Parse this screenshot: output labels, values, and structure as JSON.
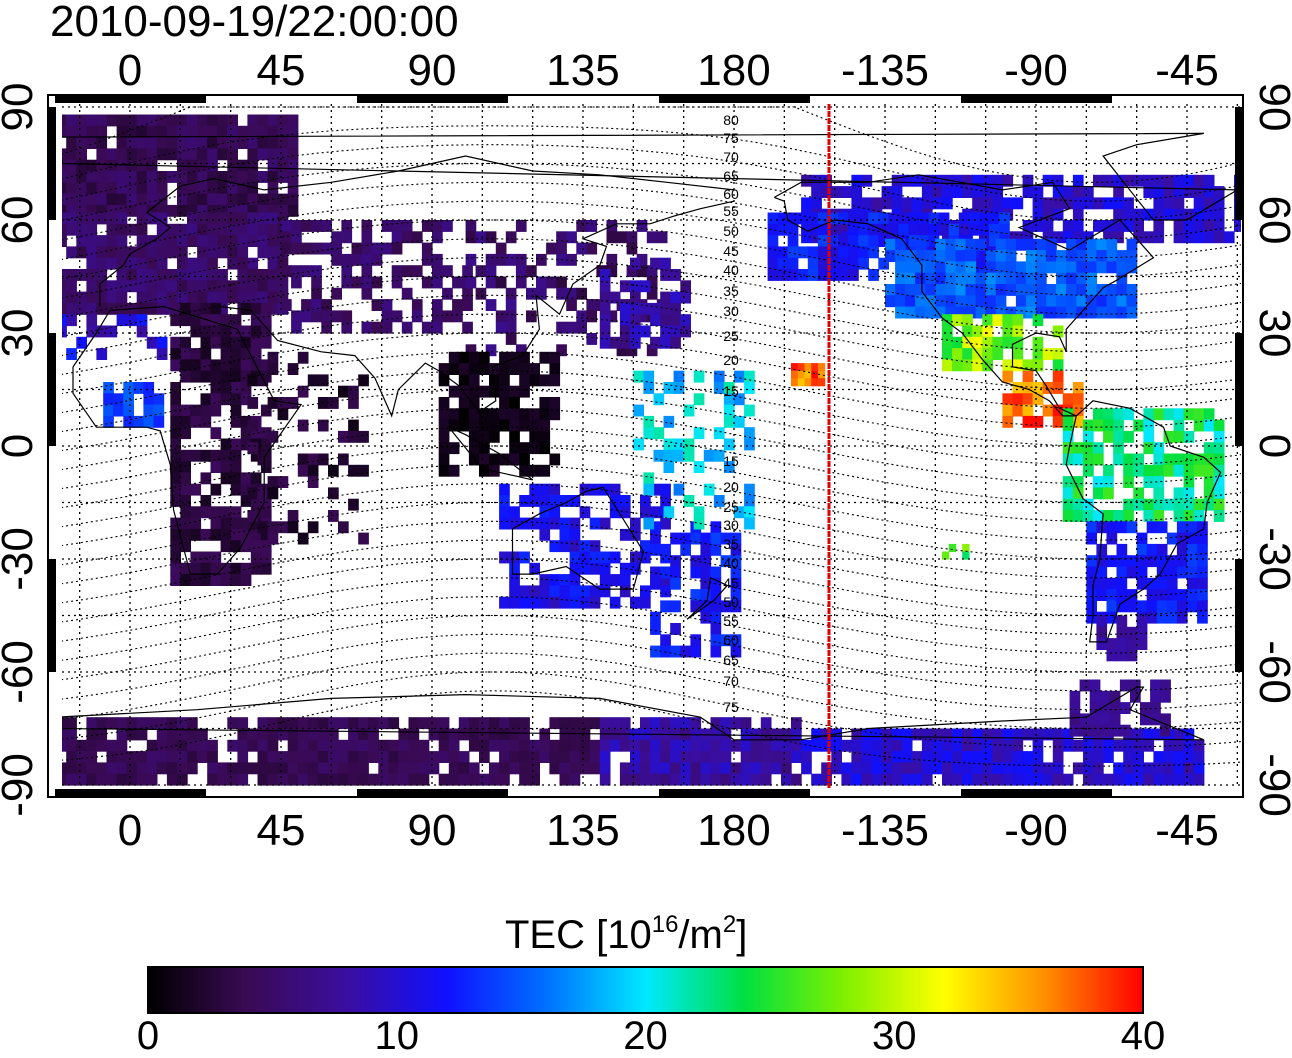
{
  "title": "2010-09-19/22:00:00",
  "map": {
    "lon_tick_labels": [
      "0",
      "45",
      "90",
      "135",
      "180",
      "-135",
      "-90",
      "-45"
    ],
    "lat_tick_labels": [
      "90",
      "60",
      "30",
      "0",
      "-30",
      "-60",
      "-90"
    ],
    "magnetic_contour_labels_north": [
      "80",
      "75",
      "70",
      "65",
      "60",
      "55",
      "50",
      "45",
      "40",
      "35",
      "30",
      "25",
      "20",
      "15"
    ],
    "magnetic_contour_labels_south": [
      "15",
      "20",
      "25",
      "30",
      "35",
      "40",
      "45",
      "50",
      "55",
      "60",
      "65",
      "70",
      "75"
    ],
    "marker_line_color": "#e00000"
  },
  "colorbar": {
    "title_text": "TEC  [10",
    "title_exp": "16",
    "title_unit": "/m",
    "title_exp2": "2",
    "title_close": "]",
    "ticks": [
      "0",
      "10",
      "20",
      "30",
      "40"
    ],
    "range": [
      0,
      40
    ],
    "colors": [
      "#000000",
      "#3a0a55",
      "#3a0ea0",
      "#1010ff",
      "#0070ff",
      "#00e8ff",
      "#00e040",
      "#80f000",
      "#ffff00",
      "#ff9000",
      "#ff0000"
    ]
  }
}
